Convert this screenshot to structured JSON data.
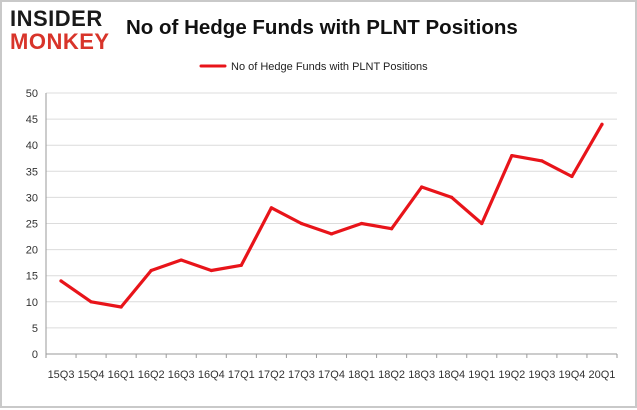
{
  "logo": {
    "line1": "INSIDER",
    "line2": "MONKEY"
  },
  "title": "No of Hedge Funds with PLNT Positions",
  "colors": {
    "series": "#e8141a",
    "grid": "#dcdcdc",
    "axis": "#9a9a9a"
  },
  "chart_data": {
    "type": "line",
    "title": "No of Hedge Funds with PLNT Positions",
    "xlabel": "",
    "ylabel": "",
    "ylim": [
      0,
      50
    ],
    "yticks": [
      0,
      5,
      10,
      15,
      20,
      25,
      30,
      35,
      40,
      45,
      50
    ],
    "grid": true,
    "legend_position": "top-center",
    "categories": [
      "15Q3",
      "15Q4",
      "16Q1",
      "16Q2",
      "16Q3",
      "16Q4",
      "17Q1",
      "17Q2",
      "17Q3",
      "17Q4",
      "18Q1",
      "18Q2",
      "18Q3",
      "18Q4",
      "19Q1",
      "19Q2",
      "19Q3",
      "19Q4",
      "20Q1"
    ],
    "series": [
      {
        "name": "No of Hedge Funds with PLNT Positions",
        "color": "#e8141a",
        "values": [
          14,
          10,
          9,
          16,
          18,
          16,
          17,
          28,
          25,
          23,
          25,
          24,
          32,
          30,
          25,
          38,
          37,
          34,
          44
        ]
      }
    ]
  }
}
